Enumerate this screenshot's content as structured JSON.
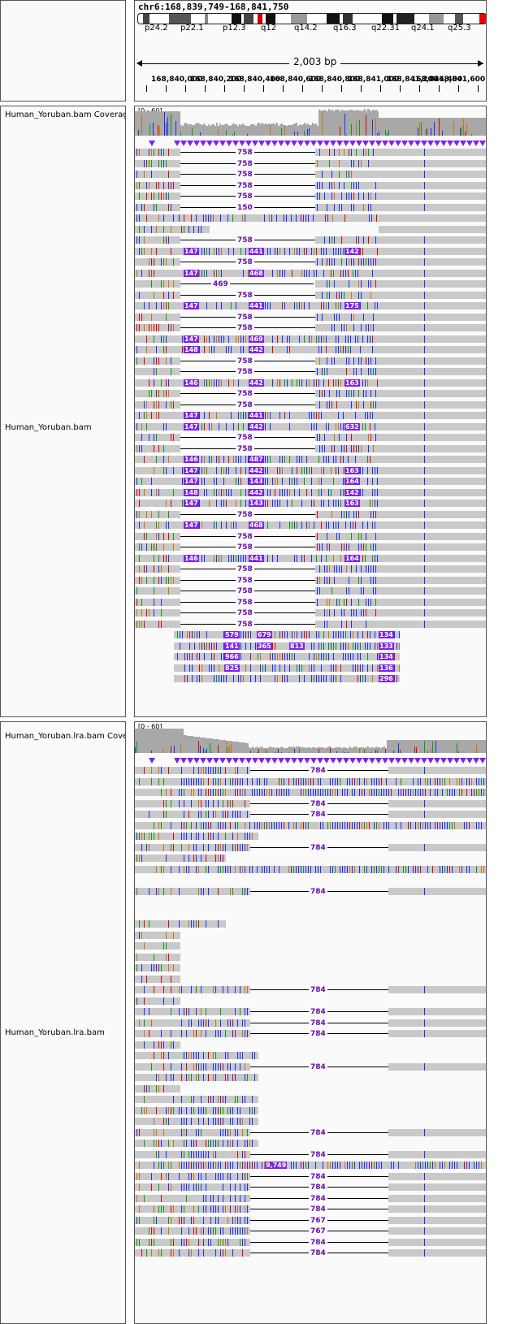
{
  "header": {
    "locus": "chr6:168,839,749-168,841,750",
    "span": "2,003 bp",
    "bands": [
      "p24.2",
      "p22.1",
      "p12.3",
      "q12",
      "q14.2",
      "q16.3",
      "q22.31",
      "q24.1",
      "q25.3"
    ],
    "ticks": [
      "168,840,000",
      "168,840,200",
      "168,840,400",
      "168,840,600",
      "168,840,800",
      "168,841,000",
      "168,841,200",
      "168,841,400",
      "168,841,600"
    ]
  },
  "tracks": {
    "bam_coverage": {
      "name": "Human_Yoruban.bam Coverage",
      "range": "[0 - 60]"
    },
    "bam": {
      "name": "Human_Yoruban.bam"
    },
    "lra_coverage": {
      "name": "Human_Yoruban.lra.bam Coverage",
      "range": "[0 - 60]"
    },
    "lra": {
      "name": "Human_Yoruban.lra.bam"
    }
  },
  "bam_labels": {
    "gap_lengths": [
      "758",
      "150",
      "469",
      "312"
    ],
    "insertions": [
      "147",
      "441",
      "142",
      "468",
      "175",
      "469",
      "148",
      "442",
      "146",
      "163",
      "632",
      "126",
      "487",
      "164",
      "143",
      "579",
      "679",
      "141",
      "365",
      "813",
      "966",
      "825",
      "134",
      "133",
      "136",
      "296"
    ]
  },
  "lra_labels": {
    "gap_lengths": [
      "784",
      "767"
    ],
    "insertions": [
      "9,749"
    ]
  },
  "colors": {
    "insertion": "#7f23e8",
    "read": "#c9c9c9",
    "coverage": "#a8a8a8",
    "A": "#00a000",
    "C": "#1a2cff",
    "G": "#d17105",
    "T": "#e00000"
  }
}
